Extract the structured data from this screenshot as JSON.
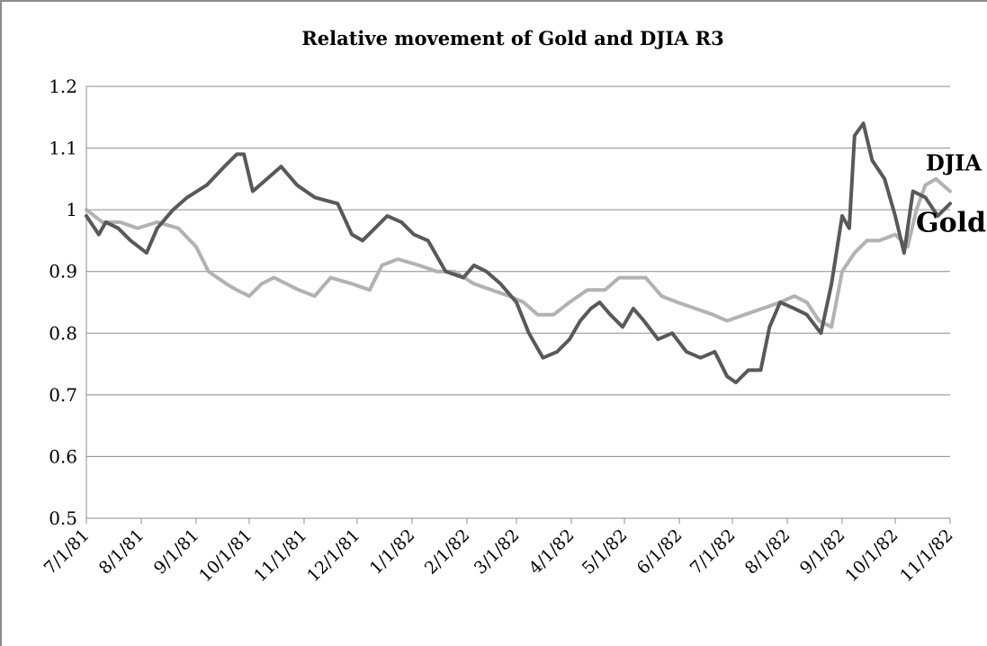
{
  "chart_data": {
    "type": "line",
    "title": "Relative movement of Gold and DJIA R3",
    "xlabel": "",
    "ylabel": "",
    "ylim": [
      0.5,
      1.2
    ],
    "yticks": [
      "0.5",
      "0.6",
      "0.7",
      "0.8",
      "0.9",
      "1",
      "1.1",
      "1.2"
    ],
    "xticks": [
      "7/1/81",
      "8/1/81",
      "9/1/81",
      "10/1/81",
      "11/1/81",
      "12/1/81",
      "1/1/82",
      "2/1/82",
      "3/1/82",
      "4/1/82",
      "5/1/82",
      "6/1/82",
      "7/1/82",
      "8/1/82",
      "9/1/82",
      "10/1/82",
      "11/1/82"
    ],
    "xlim": [
      "7/1/81",
      "11/1/82"
    ],
    "grid": true,
    "legend": "none",
    "series": [
      {
        "name": "Gold",
        "color": "#595959",
        "points": [
          [
            "7/1/81",
            0.99
          ],
          [
            "7/8/81",
            0.96
          ],
          [
            "7/12/81",
            0.98
          ],
          [
            "7/19/81",
            0.97
          ],
          [
            "7/26/81",
            0.95
          ],
          [
            "8/4/81",
            0.93
          ],
          [
            "8/10/81",
            0.97
          ],
          [
            "8/19/81",
            1.0
          ],
          [
            "8/27/81",
            1.02
          ],
          [
            "9/7/81",
            1.04
          ],
          [
            "9/17/81",
            1.07
          ],
          [
            "9/24/81",
            1.09
          ],
          [
            "9/28/81",
            1.09
          ],
          [
            "10/3/81",
            1.03
          ],
          [
            "10/11/81",
            1.05
          ],
          [
            "10/19/81",
            1.07
          ],
          [
            "10/28/81",
            1.04
          ],
          [
            "11/7/81",
            1.02
          ],
          [
            "11/20/81",
            1.01
          ],
          [
            "11/28/81",
            0.96
          ],
          [
            "12/4/81",
            0.95
          ],
          [
            "12/11/81",
            0.97
          ],
          [
            "12/18/81",
            0.99
          ],
          [
            "12/26/81",
            0.98
          ],
          [
            "1/2/82",
            0.96
          ],
          [
            "1/10/82",
            0.95
          ],
          [
            "1/20/82",
            0.9
          ],
          [
            "1/30/82",
            0.89
          ],
          [
            "2/5/82",
            0.91
          ],
          [
            "2/12/82",
            0.9
          ],
          [
            "2/20/82",
            0.88
          ],
          [
            "3/1/82",
            0.85
          ],
          [
            "3/8/82",
            0.8
          ],
          [
            "3/16/82",
            0.76
          ],
          [
            "3/24/82",
            0.77
          ],
          [
            "3/31/82",
            0.79
          ],
          [
            "4/6/82",
            0.82
          ],
          [
            "4/12/82",
            0.84
          ],
          [
            "4/17/82",
            0.85
          ],
          [
            "4/23/82",
            0.83
          ],
          [
            "4/30/82",
            0.81
          ],
          [
            "5/6/82",
            0.84
          ],
          [
            "5/12/82",
            0.82
          ],
          [
            "5/20/82",
            0.79
          ],
          [
            "5/28/82",
            0.8
          ],
          [
            "6/5/82",
            0.77
          ],
          [
            "6/13/82",
            0.76
          ],
          [
            "6/21/82",
            0.77
          ],
          [
            "6/28/82",
            0.73
          ],
          [
            "7/3/82",
            0.72
          ],
          [
            "7/10/82",
            0.74
          ],
          [
            "7/17/82",
            0.74
          ],
          [
            "7/22/82",
            0.81
          ],
          [
            "7/28/82",
            0.85
          ],
          [
            "8/5/82",
            0.84
          ],
          [
            "8/12/82",
            0.83
          ],
          [
            "8/20/82",
            0.8
          ],
          [
            "8/26/82",
            0.88
          ],
          [
            "9/1/82",
            0.99
          ],
          [
            "9/5/82",
            0.97
          ],
          [
            "9/8/82",
            1.12
          ],
          [
            "9/13/82",
            1.14
          ],
          [
            "9/18/82",
            1.08
          ],
          [
            "9/25/82",
            1.05
          ],
          [
            "10/1/82",
            0.99
          ],
          [
            "10/6/82",
            0.93
          ],
          [
            "10/11/82",
            1.03
          ],
          [
            "10/18/82",
            1.02
          ],
          [
            "10/25/82",
            0.99
          ],
          [
            "11/1/82",
            1.01
          ]
        ]
      },
      {
        "name": "DJIA",
        "color": "#b2b2b2",
        "points": [
          [
            "7/1/81",
            1.0
          ],
          [
            "7/10/81",
            0.98
          ],
          [
            "7/20/81",
            0.98
          ],
          [
            "7/30/81",
            0.97
          ],
          [
            "8/10/81",
            0.98
          ],
          [
            "8/22/81",
            0.97
          ],
          [
            "9/1/81",
            0.94
          ],
          [
            "9/8/81",
            0.9
          ],
          [
            "9/18/81",
            0.88
          ],
          [
            "9/24/81",
            0.87
          ],
          [
            "10/1/81",
            0.86
          ],
          [
            "10/8/81",
            0.88
          ],
          [
            "10/15/81",
            0.89
          ],
          [
            "10/22/81",
            0.88
          ],
          [
            "10/29/81",
            0.87
          ],
          [
            "11/7/81",
            0.86
          ],
          [
            "11/16/81",
            0.89
          ],
          [
            "11/28/81",
            0.88
          ],
          [
            "12/8/81",
            0.87
          ],
          [
            "12/15/81",
            0.91
          ],
          [
            "12/24/81",
            0.92
          ],
          [
            "1/5/82",
            0.91
          ],
          [
            "1/15/82",
            0.9
          ],
          [
            "1/25/82",
            0.9
          ],
          [
            "2/5/82",
            0.88
          ],
          [
            "2/15/82",
            0.87
          ],
          [
            "2/25/82",
            0.86
          ],
          [
            "3/5/82",
            0.85
          ],
          [
            "3/13/82",
            0.83
          ],
          [
            "3/22/82",
            0.83
          ],
          [
            "3/31/82",
            0.85
          ],
          [
            "4/10/82",
            0.87
          ],
          [
            "4/20/82",
            0.87
          ],
          [
            "4/28/82",
            0.89
          ],
          [
            "5/5/82",
            0.89
          ],
          [
            "5/13/82",
            0.89
          ],
          [
            "5/22/82",
            0.86
          ],
          [
            "5/31/82",
            0.85
          ],
          [
            "6/10/82",
            0.84
          ],
          [
            "6/20/82",
            0.83
          ],
          [
            "6/28/82",
            0.82
          ],
          [
            "7/8/82",
            0.83
          ],
          [
            "7/18/82",
            0.84
          ],
          [
            "7/28/82",
            0.85
          ],
          [
            "8/5/82",
            0.86
          ],
          [
            "8/12/82",
            0.85
          ],
          [
            "8/19/82",
            0.82
          ],
          [
            "8/26/82",
            0.81
          ],
          [
            "9/1/82",
            0.9
          ],
          [
            "9/8/82",
            0.93
          ],
          [
            "9/15/82",
            0.95
          ],
          [
            "9/22/82",
            0.95
          ],
          [
            "10/1/82",
            0.96
          ],
          [
            "10/8/82",
            0.94
          ],
          [
            "10/13/82",
            1.0
          ],
          [
            "10/18/82",
            1.04
          ],
          [
            "10/24/82",
            1.05
          ],
          [
            "10/28/82",
            1.04
          ],
          [
            "11/1/82",
            1.03
          ]
        ]
      }
    ],
    "annotations": [
      {
        "text": "DJIA",
        "series": "DJIA",
        "size": "small"
      },
      {
        "text": "Gold",
        "series": "Gold",
        "size": "large"
      }
    ]
  }
}
